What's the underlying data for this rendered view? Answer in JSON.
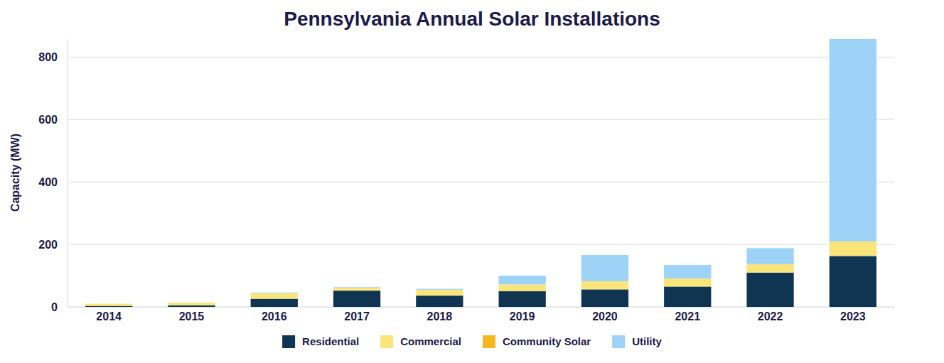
{
  "chart_data": {
    "type": "bar",
    "title": "Pennsylvania Annual Solar Installations",
    "y_label": "Capacity (MW)",
    "categories": [
      "2014",
      "2015",
      "2016",
      "2017",
      "2018",
      "2019",
      "2020",
      "2021",
      "2022",
      "2023"
    ],
    "series": [
      {
        "name": "Residential",
        "color": "#0f3553",
        "values": [
          3,
          5,
          26,
          52,
          36,
          50,
          56,
          65,
          110,
          163
        ]
      },
      {
        "name": "Commercial",
        "color": "#f9e57a",
        "values": [
          7,
          9,
          18,
          10,
          19,
          22,
          26,
          26,
          26,
          46
        ]
      },
      {
        "name": "Community Solar",
        "color": "#f5b820",
        "values": [
          0,
          0,
          0,
          0,
          0,
          0,
          0,
          0,
          1,
          1
        ]
      },
      {
        "name": "Utility",
        "color": "#9dd3f7",
        "values": [
          0,
          0,
          2,
          2,
          3,
          28,
          84,
          43,
          51,
          648
        ]
      }
    ],
    "ylim": [
      0,
      860
    ],
    "yticks": [
      0,
      200,
      400,
      600,
      800
    ],
    "stacked": true,
    "grid": true,
    "legend": "bottom"
  }
}
